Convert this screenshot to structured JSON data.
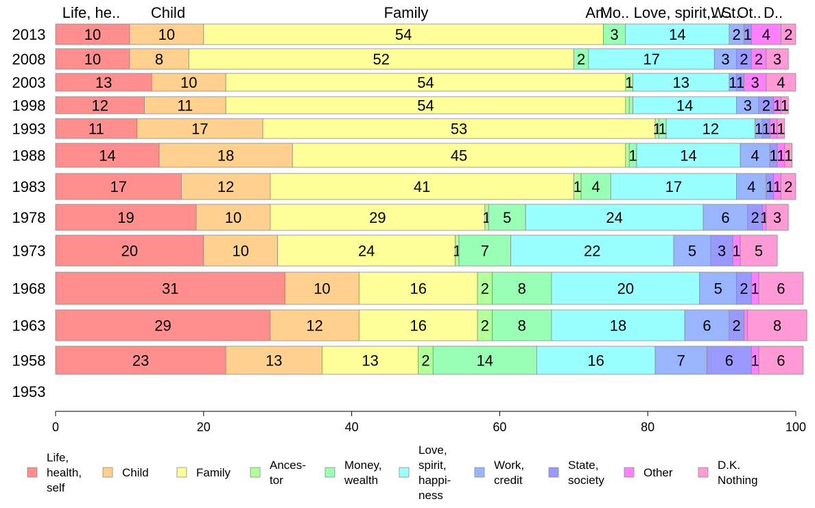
{
  "chart_data": {
    "type": "bar",
    "orientation": "horizontal",
    "stacked": true,
    "title": "",
    "xlabel": "",
    "ylabel": "",
    "xlim": [
      0,
      100
    ],
    "x_ticks": [
      "0",
      "20",
      "40",
      "60",
      "80",
      "100"
    ],
    "grid": false,
    "legend_position": "bottom",
    "categories": [
      "2013",
      "2008",
      "2003",
      "1998",
      "1993",
      "1988",
      "1983",
      "1978",
      "1973",
      "1968",
      "1963",
      "1958",
      "1953"
    ],
    "top_labels": [
      "Life, he..",
      "Child",
      "Family",
      "An..",
      "Mo..",
      "Love, spirit,..",
      "W..",
      "St..",
      "Ot..",
      "D.."
    ],
    "series": [
      {
        "name": "Life, health, self",
        "legend_lines": [
          "Life,",
          "health,",
          "self"
        ],
        "color": "#ff8f8f",
        "values": [
          10,
          10,
          13,
          12,
          11,
          14,
          17,
          19,
          20,
          31,
          29,
          23,
          null
        ],
        "labels": [
          "10",
          "10",
          "13",
          "12",
          "11",
          "14",
          "17",
          "19",
          "20",
          "31",
          "29",
          "23",
          ""
        ]
      },
      {
        "name": "Child",
        "legend_lines": [
          "Child"
        ],
        "color": "#ffd08e",
        "values": [
          10,
          8,
          10,
          11,
          17,
          18,
          12,
          10,
          10,
          10,
          12,
          13,
          null
        ],
        "labels": [
          "10",
          "8",
          "10",
          "11",
          "17",
          "18",
          "12",
          "10",
          "10",
          "10",
          "12",
          "13",
          ""
        ]
      },
      {
        "name": "Family",
        "legend_lines": [
          "Family"
        ],
        "color": "#ffff99",
        "values": [
          54,
          52,
          54,
          54,
          53,
          45,
          41,
          29,
          24,
          16,
          16,
          13,
          null
        ],
        "labels": [
          "54",
          "52",
          "54",
          "54",
          "53",
          "45",
          "41",
          "29",
          "24",
          "16",
          "16",
          "13",
          ""
        ]
      },
      {
        "name": "Ancestor",
        "legend_lines": [
          "Ances-",
          "tor"
        ],
        "color": "#b3ff99",
        "values": [
          0,
          0,
          1,
          0.5,
          0.5,
          0.5,
          1,
          0.5,
          0.5,
          2,
          2,
          2,
          null
        ],
        "labels": [
          "",
          "",
          "1",
          "",
          "1",
          "",
          "1",
          "1",
          "1",
          "2",
          "2",
          "2",
          ""
        ]
      },
      {
        "name": "Money, wealth",
        "legend_lines": [
          "Money,",
          "wealth"
        ],
        "color": "#99ffb5",
        "values": [
          3,
          2,
          0,
          0.5,
          1,
          1,
          4,
          5,
          7,
          8,
          8,
          14,
          null
        ],
        "labels": [
          "3",
          "2",
          "",
          "",
          "1",
          "1",
          "4",
          "5",
          "7",
          "8",
          "8",
          "14",
          ""
        ]
      },
      {
        "name": "Love, spirit, happiness",
        "legend_lines": [
          "Love,",
          "spirit,",
          "happi-",
          "ness"
        ],
        "color": "#99ffff",
        "values": [
          14,
          17,
          13,
          14,
          12,
          14,
          17,
          24,
          22,
          20,
          18,
          16,
          null
        ],
        "labels": [
          "14",
          "17",
          "13",
          "14",
          "12",
          "14",
          "17",
          "24",
          "22",
          "20",
          "18",
          "16",
          ""
        ]
      },
      {
        "name": "Work, credit",
        "legend_lines": [
          "Work,",
          "credit"
        ],
        "color": "#99b5ff",
        "values": [
          2,
          3,
          1,
          3,
          1,
          4,
          4,
          6,
          5,
          5,
          6,
          7,
          null
        ],
        "labels": [
          "2",
          "3",
          "1",
          "3",
          "1",
          "4",
          "4",
          "6",
          "5",
          "5",
          "6",
          "7",
          ""
        ]
      },
      {
        "name": "State, society",
        "legend_lines": [
          "State,",
          "society"
        ],
        "color": "#9999ff",
        "values": [
          1,
          2,
          1,
          2,
          1,
          1,
          1,
          2,
          3,
          2,
          2,
          6,
          null
        ],
        "labels": [
          "1",
          "2",
          "1",
          "2",
          "1",
          "1",
          "1",
          "2",
          "3",
          "2",
          "2",
          "6",
          ""
        ]
      },
      {
        "name": "Other",
        "legend_lines": [
          "Other"
        ],
        "color": "#ff80ff",
        "values": [
          4,
          2,
          3,
          1,
          1,
          1,
          1,
          0.5,
          1,
          1,
          0.5,
          1,
          null
        ],
        "labels": [
          "4",
          "2",
          "3",
          "1",
          "1",
          "1",
          "1",
          "1",
          "1",
          "1",
          "",
          "1",
          ""
        ]
      },
      {
        "name": "D.K. Nothing",
        "legend_lines": [
          "D.K.",
          "Nothing"
        ],
        "color": "#ff9ad6",
        "values": [
          2,
          3,
          4,
          1,
          1,
          1,
          2,
          3,
          5,
          6,
          8,
          6,
          null
        ],
        "labels": [
          "2",
          "3",
          "4",
          "1",
          "1",
          "1",
          "2",
          "3",
          "5",
          "6",
          "8",
          "6",
          ""
        ]
      }
    ]
  }
}
